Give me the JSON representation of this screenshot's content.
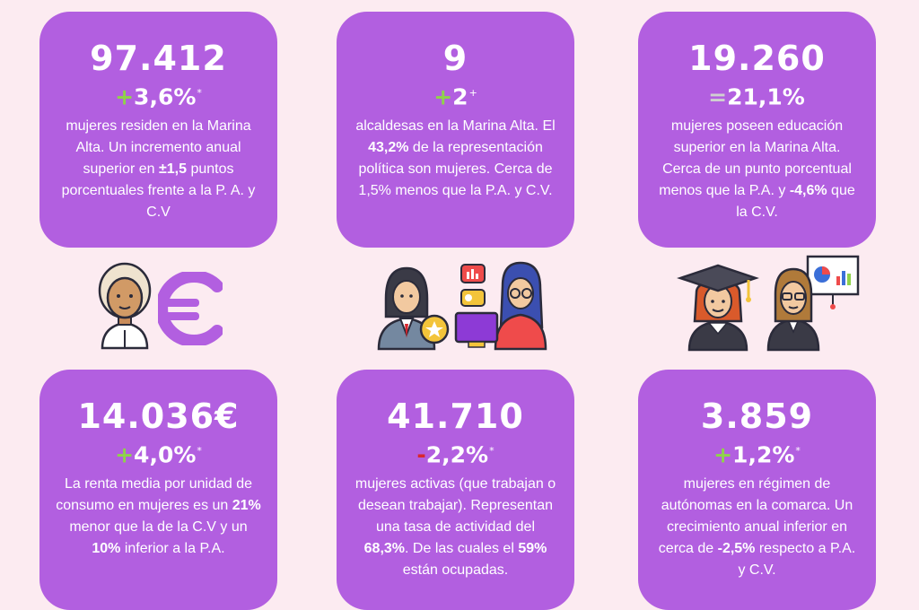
{
  "cards": [
    {
      "value": "97.412",
      "sign": "+",
      "change": "3,6%",
      "note": "*",
      "desc": [
        {
          "t": "mujeres residen en la Marina Alta. Un incremento anual superior en ",
          "b": false
        },
        {
          "t": "±1,5",
          "b": true
        },
        {
          "t": " puntos porcentuales frente a la P. A. y C.V",
          "b": false
        }
      ]
    },
    {
      "value": "9",
      "sign": "+",
      "change": "2",
      "note": "+",
      "desc": [
        {
          "t": "alcaldesas en la Marina Alta. El ",
          "b": false
        },
        {
          "t": "43,2%",
          "b": true
        },
        {
          "t": " de la representación política son mujeres. Cerca de 1,5% menos que la P.A. y C.V.",
          "b": false
        }
      ]
    },
    {
      "value": "19.260",
      "sign": "=",
      "change": "21,1%",
      "note": "",
      "desc": [
        {
          "t": "mujeres poseen educación superior en la Marina Alta. Cerca de un punto porcentual menos que la P.A. y ",
          "b": false
        },
        {
          "t": "-4,6%",
          "b": true
        },
        {
          "t": " que la C.V.",
          "b": false
        }
      ]
    },
    {
      "value": "14.036€",
      "sign": "+",
      "change": "4,0%",
      "note": "*",
      "desc": [
        {
          "t": "La renta media por unidad de consumo en mujeres es un ",
          "b": false
        },
        {
          "t": "21%",
          "b": true
        },
        {
          "t": " menor que la de la C.V y un ",
          "b": false
        },
        {
          "t": "10%",
          "b": true
        },
        {
          "t": " inferior a la P.A.",
          "b": false
        }
      ]
    },
    {
      "value": "41.710",
      "sign": "-",
      "change": "2,2%",
      "note": "*",
      "desc": [
        {
          "t": "mujeres activas (que trabajan o desean trabajar). Representan una tasa de actividad del ",
          "b": false
        },
        {
          "t": "68,3%",
          "b": true
        },
        {
          "t": ". De las cuales el ",
          "b": false
        },
        {
          "t": "59%",
          "b": true
        },
        {
          "t": " están ocupadas.",
          "b": false
        }
      ]
    },
    {
      "value": "3.859",
      "sign": "+",
      "change": "1,2%",
      "note": "*",
      "desc": [
        {
          "t": "mujeres en régimen de autónomas en la comarca. Un crecimiento anual inferior en cerca de ",
          "b": false
        },
        {
          "t": "-2,5%",
          "b": true
        },
        {
          "t": " respecto a P.A. y C.V.",
          "b": false
        }
      ]
    }
  ],
  "colors": {
    "background": "#fcebf1",
    "card": "#b25fe0",
    "plus": "#8fd24a",
    "minus": "#d9262e",
    "equal": "#d0d0d0"
  },
  "illustrations": [
    "elderly-woman-icon",
    "euro-icon",
    "businesswoman-icon",
    "woman-at-computer-icon",
    "graduate-icon",
    "teacher-icon"
  ]
}
